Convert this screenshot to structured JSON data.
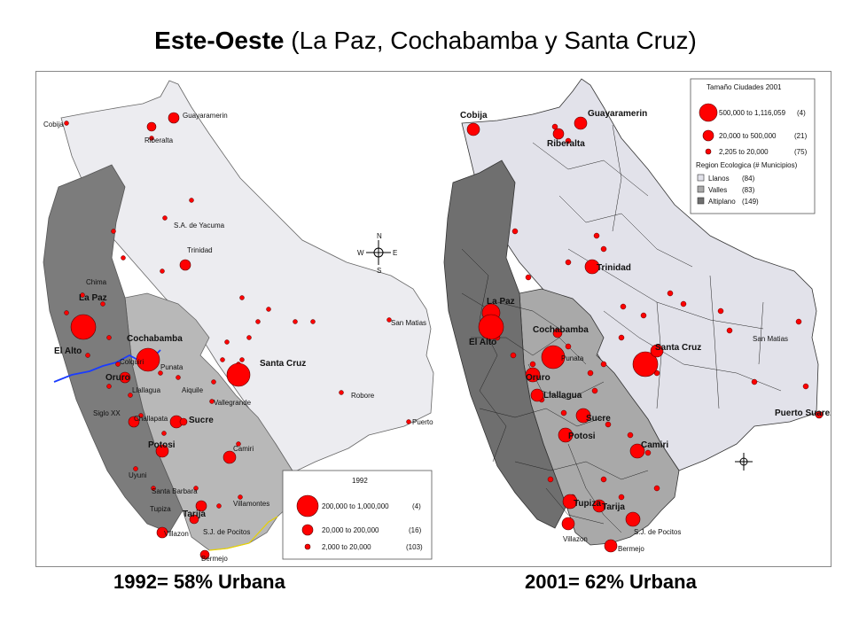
{
  "title": {
    "bold": "Este-Oeste",
    "rest": "(La Paz, Cochabamba y Santa Cruz)"
  },
  "captions": {
    "left": "1992= 58% Urbana",
    "right": "2001= 62% Urbana"
  },
  "colors": {
    "llanos": "#ececf0",
    "valles": "#b8b8b8",
    "altiplano": "#7c7c7c",
    "city": "#ff0000",
    "river": "#1a3cff"
  },
  "map1992": {
    "cities_bold": [
      "La Paz",
      "El Alto",
      "Cochabamba",
      "Oruro",
      "Santa Cruz",
      "Sucre",
      "Potosi",
      "Tarija"
    ],
    "cities": [
      "Guayaramerin",
      "Cobija",
      "Riberalta",
      "S.A. de Yacuma",
      "Trinidad",
      "Chima",
      "Colquiri",
      "Punata",
      "Llallagua",
      "Aiquile",
      "Vallegrande",
      "Siglo XX",
      "Challapata",
      "Robore",
      "San Matias",
      "Puerto",
      "Camiri",
      "Uyuni",
      "Santa Barbara",
      "Tupiza",
      "Villamontes",
      "Villazon",
      "S.J. de Pocitos",
      "Bermejo"
    ],
    "legend": {
      "title": "1992",
      "rows": [
        {
          "range": "200,000 to 1,000,000",
          "count": "(4)"
        },
        {
          "range": "20,000 to    200,000",
          "count": "(16)"
        },
        {
          "range": "2,000 to      20,000",
          "count": "(103)"
        }
      ]
    }
  },
  "map2001": {
    "cities_bold": [
      "Cobija",
      "Guayaramerin",
      "Riberalta",
      "Trinidad",
      "La Paz",
      "El Alto",
      "Cochabamba",
      "Oruro",
      "Llallagua",
      "Santa Cruz",
      "Sucre",
      "Potosi",
      "Camiri",
      "Tupiza",
      "Tarija",
      "Puerto Suarez"
    ],
    "cities": [
      "Punata",
      "San Matias",
      "Villazon",
      "S.J. de Pocitos",
      "Bermejo"
    ],
    "legend": {
      "title": "Tamaño Ciudades 2001",
      "rows": [
        {
          "range": "500,000 to 1,116,059",
          "count": "(4)"
        },
        {
          "range": "20,000 to    500,000",
          "count": "(21)"
        },
        {
          "range": "2,205 to      20,000",
          "count": "(75)"
        }
      ],
      "region_title": "Region Ecologica (# Municipios)",
      "regions": [
        {
          "name": "Llanos",
          "count": "(84)"
        },
        {
          "name": "Valles",
          "count": "(83)"
        },
        {
          "name": "Altiplano",
          "count": "(149)"
        }
      ]
    }
  },
  "compass": {
    "n": "N",
    "s": "S",
    "e": "E",
    "w": "W"
  }
}
